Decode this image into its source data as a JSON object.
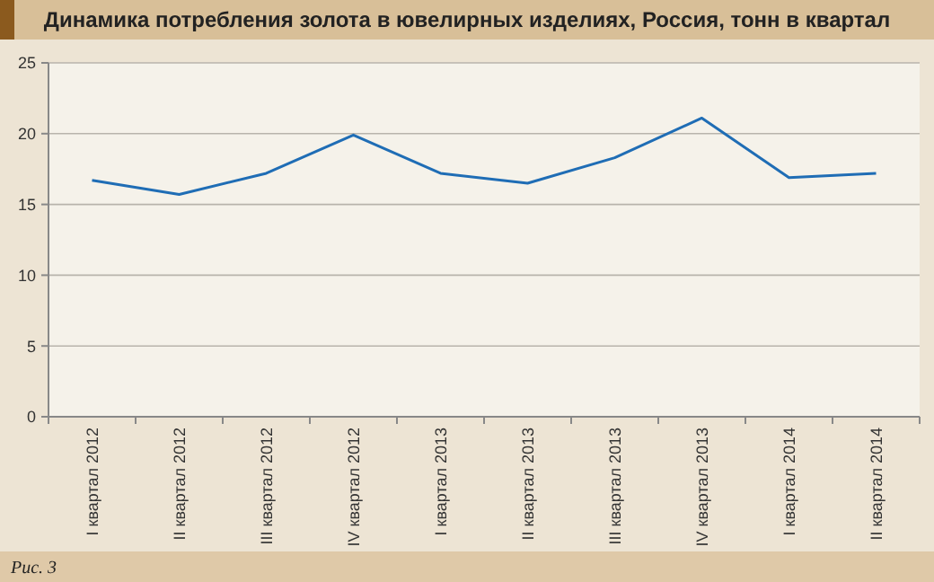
{
  "chart_data": {
    "type": "line",
    "title": "Динамика потребления золота в ювелирных изделиях, Россия, тонн в квартал",
    "categories": [
      "I квартал 2012",
      "II квартал 2012",
      "III квартал 2012",
      "IV квартал 2012",
      "I квартал 2013",
      "II квартал 2013",
      "III квартал 2013",
      "IV квартал 2013",
      "I квартал 2014",
      "II квартал 2014"
    ],
    "series": [
      {
        "color": "#1f6db5",
        "values": [
          16.7,
          15.7,
          17.2,
          19.9,
          17.2,
          16.5,
          18.3,
          21.1,
          16.9,
          17.2
        ]
      }
    ],
    "ylim": [
      0,
      25
    ],
    "yticks": [
      0,
      5,
      10,
      15,
      20,
      25
    ],
    "grid": "y",
    "marker": "none",
    "line_style": "solid",
    "annotations": [
      "Рис. 3"
    ]
  }
}
